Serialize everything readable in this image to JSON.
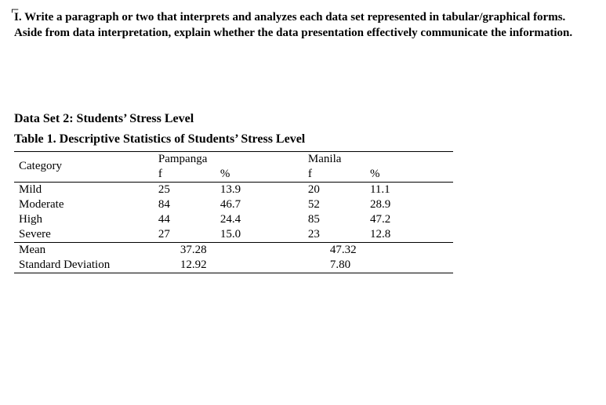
{
  "instruction": {
    "cursor_glyph": "⌐",
    "text": "I. Write a paragraph or two that interprets and analyzes each data set represented in tabular/graphical forms. Aside from data interpretation, explain whether the data presentation effectively communicate the information."
  },
  "dataset_heading": "Data Set 2: Students’ Stress Level",
  "table_caption": "Table 1. Descriptive Statistics of Students’ Stress Level",
  "table": {
    "header": {
      "category": "Category",
      "group1": "Pampanga",
      "group2": "Manila",
      "sub_f": "f",
      "sub_p": "%"
    },
    "rows": [
      {
        "cat": "Mild",
        "f1": "25",
        "p1": "13.9",
        "f2": "20",
        "p2": "11.1"
      },
      {
        "cat": "Moderate",
        "f1": "84",
        "p1": "46.7",
        "f2": "52",
        "p2": "28.9"
      },
      {
        "cat": "High",
        "f1": "44",
        "p1": "24.4",
        "f2": "85",
        "p2": "47.2"
      },
      {
        "cat": "Severe",
        "f1": "27",
        "p1": "15.0",
        "f2": "23",
        "p2": "12.8"
      }
    ],
    "summary": {
      "mean_label": "Mean",
      "sd_label": "Standard Deviation",
      "mean1": "37.28",
      "mean2": "47.32",
      "sd1": "12.92",
      "sd2": "7.80"
    }
  }
}
